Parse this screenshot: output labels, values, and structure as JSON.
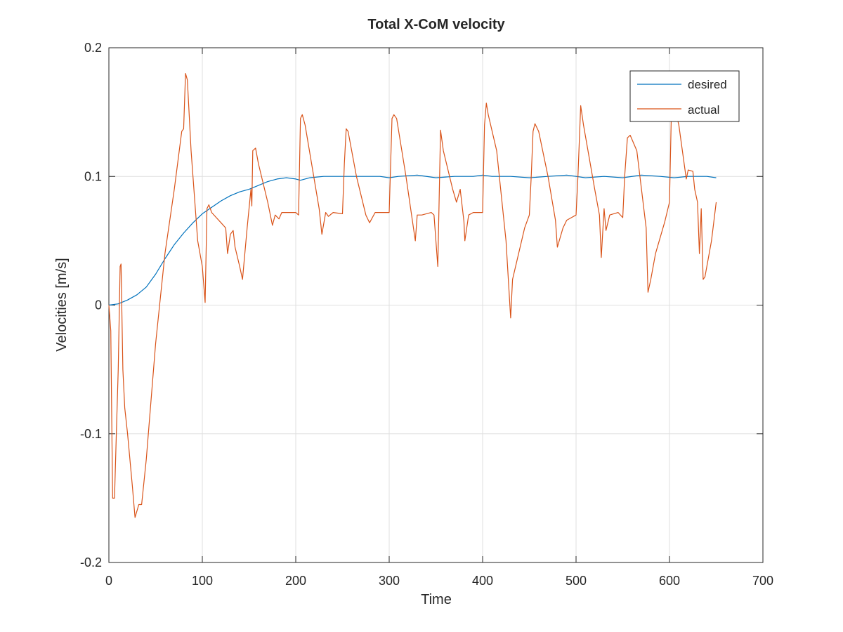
{
  "chart_data": {
    "type": "line",
    "title": "Total X-CoM velocity",
    "xlabel": "Time",
    "ylabel": "Velocities [m/s]",
    "xlim": [
      0,
      700
    ],
    "ylim": [
      -0.2,
      0.2
    ],
    "xticks": [
      0,
      100,
      200,
      300,
      400,
      500,
      600,
      700
    ],
    "yticks": [
      -0.2,
      -0.1,
      0,
      0.1,
      0.2
    ],
    "xtick_labels": [
      "0",
      "100",
      "200",
      "300",
      "400",
      "500",
      "600",
      "700"
    ],
    "ytick_labels": [
      "-0.2",
      "-0.1",
      "0",
      "0.1",
      "0.2"
    ],
    "grid": true,
    "legend_position": "top-right",
    "series": [
      {
        "name": "desired",
        "color": "#0072bd",
        "points": [
          [
            0,
            0
          ],
          [
            10,
            0.001
          ],
          [
            20,
            0.004
          ],
          [
            30,
            0.008
          ],
          [
            40,
            0.014
          ],
          [
            50,
            0.024
          ],
          [
            60,
            0.036
          ],
          [
            70,
            0.047
          ],
          [
            80,
            0.056
          ],
          [
            90,
            0.064
          ],
          [
            100,
            0.071
          ],
          [
            110,
            0.076
          ],
          [
            120,
            0.081
          ],
          [
            130,
            0.085
          ],
          [
            140,
            0.088
          ],
          [
            150,
            0.09
          ],
          [
            160,
            0.093
          ],
          [
            170,
            0.096
          ],
          [
            180,
            0.098
          ],
          [
            190,
            0.099
          ],
          [
            200,
            0.098
          ],
          [
            205,
            0.097
          ],
          [
            215,
            0.099
          ],
          [
            230,
            0.1
          ],
          [
            250,
            0.1
          ],
          [
            270,
            0.1
          ],
          [
            290,
            0.1
          ],
          [
            300,
            0.099
          ],
          [
            310,
            0.1
          ],
          [
            330,
            0.101
          ],
          [
            350,
            0.099
          ],
          [
            370,
            0.1
          ],
          [
            390,
            0.1
          ],
          [
            400,
            0.101
          ],
          [
            410,
            0.1
          ],
          [
            430,
            0.1
          ],
          [
            450,
            0.099
          ],
          [
            470,
            0.1
          ],
          [
            490,
            0.101
          ],
          [
            500,
            0.1
          ],
          [
            510,
            0.099
          ],
          [
            530,
            0.1
          ],
          [
            550,
            0.099
          ],
          [
            570,
            0.101
          ],
          [
            590,
            0.1
          ],
          [
            605,
            0.099
          ],
          [
            620,
            0.1
          ],
          [
            640,
            0.1
          ],
          [
            650,
            0.099
          ]
        ]
      },
      {
        "name": "actual",
        "color": "#d95319",
        "points": [
          [
            0,
            0
          ],
          [
            2,
            -0.02
          ],
          [
            4,
            -0.15
          ],
          [
            6,
            -0.15
          ],
          [
            8,
            -0.1
          ],
          [
            10,
            -0.05
          ],
          [
            12,
            0.03
          ],
          [
            13,
            0.032
          ],
          [
            15,
            -0.05
          ],
          [
            17,
            -0.08
          ],
          [
            20,
            -0.1
          ],
          [
            25,
            -0.14
          ],
          [
            28,
            -0.165
          ],
          [
            32,
            -0.155
          ],
          [
            35,
            -0.155
          ],
          [
            40,
            -0.12
          ],
          [
            50,
            -0.03
          ],
          [
            60,
            0.04
          ],
          [
            70,
            0.09
          ],
          [
            78,
            0.135
          ],
          [
            80,
            0.137
          ],
          [
            82,
            0.18
          ],
          [
            84,
            0.175
          ],
          [
            88,
            0.12
          ],
          [
            95,
            0.05
          ],
          [
            100,
            0.03
          ],
          [
            103,
            0.002
          ],
          [
            105,
            0.075
          ],
          [
            107,
            0.078
          ],
          [
            110,
            0.072
          ],
          [
            115,
            0.068
          ],
          [
            120,
            0.064
          ],
          [
            125,
            0.06
          ],
          [
            127,
            0.04
          ],
          [
            130,
            0.055
          ],
          [
            133,
            0.058
          ],
          [
            135,
            0.045
          ],
          [
            140,
            0.03
          ],
          [
            143,
            0.02
          ],
          [
            148,
            0.06
          ],
          [
            152,
            0.09
          ],
          [
            153,
            0.077
          ],
          [
            154,
            0.12
          ],
          [
            157,
            0.122
          ],
          [
            160,
            0.11
          ],
          [
            170,
            0.08
          ],
          [
            175,
            0.062
          ],
          [
            178,
            0.07
          ],
          [
            182,
            0.067
          ],
          [
            185,
            0.072
          ],
          [
            200,
            0.072
          ],
          [
            203,
            0.07
          ],
          [
            205,
            0.145
          ],
          [
            207,
            0.148
          ],
          [
            210,
            0.14
          ],
          [
            225,
            0.075
          ],
          [
            228,
            0.055
          ],
          [
            232,
            0.072
          ],
          [
            235,
            0.069
          ],
          [
            240,
            0.072
          ],
          [
            250,
            0.071
          ],
          [
            252,
            0.11
          ],
          [
            254,
            0.137
          ],
          [
            256,
            0.135
          ],
          [
            265,
            0.1
          ],
          [
            275,
            0.07
          ],
          [
            279,
            0.064
          ],
          [
            285,
            0.072
          ],
          [
            300,
            0.072
          ],
          [
            303,
            0.145
          ],
          [
            305,
            0.148
          ],
          [
            308,
            0.145
          ],
          [
            318,
            0.1
          ],
          [
            328,
            0.05
          ],
          [
            330,
            0.07
          ],
          [
            335,
            0.07
          ],
          [
            345,
            0.072
          ],
          [
            348,
            0.07
          ],
          [
            352,
            0.03
          ],
          [
            355,
            0.136
          ],
          [
            358,
            0.12
          ],
          [
            368,
            0.09
          ],
          [
            372,
            0.08
          ],
          [
            376,
            0.09
          ],
          [
            380,
            0.065
          ],
          [
            381,
            0.05
          ],
          [
            385,
            0.07
          ],
          [
            390,
            0.072
          ],
          [
            400,
            0.072
          ],
          [
            402,
            0.14
          ],
          [
            404,
            0.157
          ],
          [
            406,
            0.148
          ],
          [
            415,
            0.12
          ],
          [
            425,
            0.05
          ],
          [
            430,
            -0.01
          ],
          [
            432,
            0.02
          ],
          [
            445,
            0.06
          ],
          [
            450,
            0.07
          ],
          [
            452,
            0.1
          ],
          [
            454,
            0.135
          ],
          [
            456,
            0.141
          ],
          [
            460,
            0.135
          ],
          [
            470,
            0.1
          ],
          [
            478,
            0.066
          ],
          [
            480,
            0.045
          ],
          [
            486,
            0.06
          ],
          [
            490,
            0.066
          ],
          [
            495,
            0.068
          ],
          [
            500,
            0.07
          ],
          [
            502,
            0.1
          ],
          [
            505,
            0.155
          ],
          [
            508,
            0.14
          ],
          [
            520,
            0.09
          ],
          [
            525,
            0.07
          ],
          [
            527,
            0.037
          ],
          [
            530,
            0.075
          ],
          [
            532,
            0.058
          ],
          [
            536,
            0.07
          ],
          [
            545,
            0.072
          ],
          [
            550,
            0.068
          ],
          [
            552,
            0.1
          ],
          [
            555,
            0.13
          ],
          [
            558,
            0.132
          ],
          [
            565,
            0.12
          ],
          [
            575,
            0.06
          ],
          [
            577,
            0.01
          ],
          [
            580,
            0.02
          ],
          [
            585,
            0.04
          ],
          [
            595,
            0.065
          ],
          [
            600,
            0.08
          ],
          [
            602,
            0.15
          ],
          [
            605,
            0.155
          ],
          [
            610,
            0.14
          ],
          [
            618,
            0.098
          ],
          [
            620,
            0.105
          ],
          [
            625,
            0.104
          ],
          [
            627,
            0.09
          ],
          [
            630,
            0.08
          ],
          [
            632,
            0.04
          ],
          [
            634,
            0.075
          ],
          [
            636,
            0.02
          ],
          [
            638,
            0.022
          ],
          [
            645,
            0.05
          ],
          [
            650,
            0.08
          ]
        ]
      }
    ]
  }
}
